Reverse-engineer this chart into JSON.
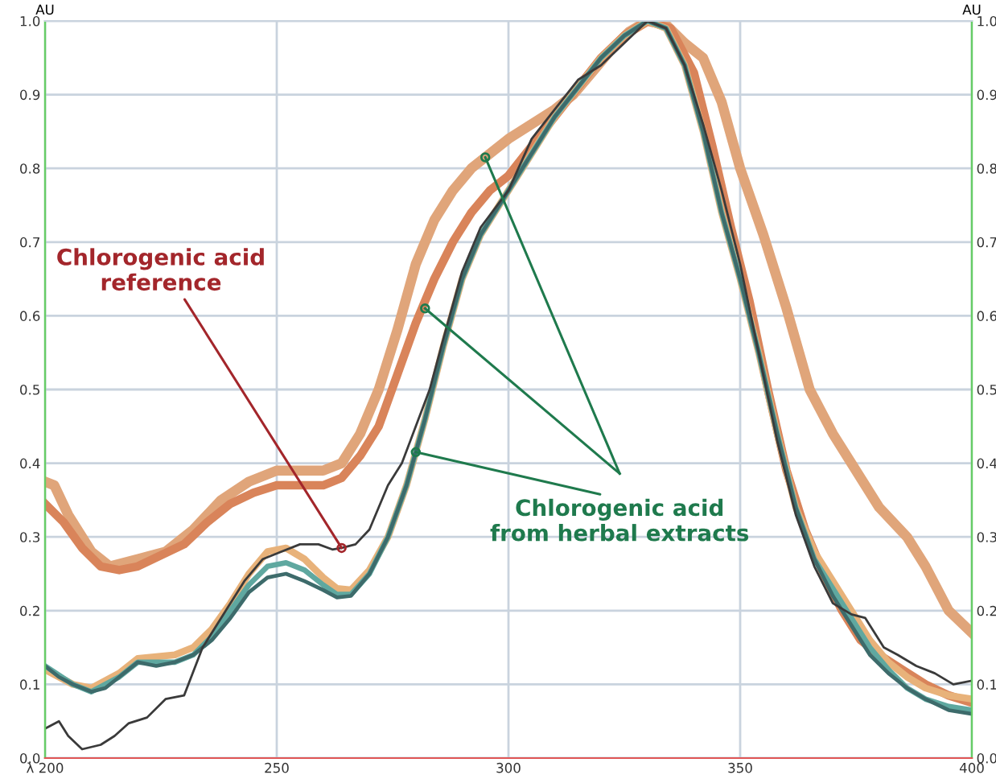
{
  "chart_data": {
    "type": "line",
    "ylabel": "AU",
    "y2label": "AU",
    "xlim": [
      200,
      400
    ],
    "xticks": [
      {
        "value": 200,
        "label": "λ 200"
      },
      250,
      300,
      350,
      400
    ],
    "ylim": [
      0,
      1.0
    ],
    "yticks": [
      {
        "value": 0,
        "label": "0.0"
      },
      0.1,
      0.2,
      0.3,
      0.4,
      0.5,
      0.6,
      0.7,
      0.8,
      0.9,
      {
        "value": 1.0,
        "label": "1.0"
      }
    ],
    "y2lim": [
      0,
      1.0
    ],
    "y2ticks": [
      {
        "value": 0,
        "label": "0.0"
      },
      0.1,
      0.2,
      0.3,
      0.4,
      0.5,
      0.6,
      0.7,
      0.8,
      0.9,
      {
        "value": 1.0,
        "label": "1.0"
      }
    ],
    "grid": true,
    "legend": false,
    "marker": "none",
    "line_style": "solid",
    "annotations": [
      {
        "text": "Chlorogenic acid\nreference",
        "x": 264,
        "y": 0.285
      },
      {
        "text": "Chlorogenic acid\nfrom herbal extracts",
        "x": 280,
        "y": 0.415
      }
    ],
    "series": [
      {
        "color": "#e0a57a",
        "x": [
          200,
          202,
          205,
          210,
          214,
          220,
          226,
          232,
          238,
          244,
          250,
          256,
          260,
          264,
          268,
          272,
          276,
          280,
          284,
          288,
          292,
          296,
          300,
          305,
          310,
          314,
          318,
          322,
          326,
          330,
          334,
          338,
          342,
          346,
          350,
          355,
          360,
          365,
          370,
          374,
          380,
          386,
          390,
          395,
          400
        ],
        "values": [
          0.375,
          0.37,
          0.33,
          0.28,
          0.26,
          0.27,
          0.28,
          0.31,
          0.35,
          0.375,
          0.39,
          0.39,
          0.39,
          0.4,
          0.44,
          0.5,
          0.58,
          0.67,
          0.73,
          0.77,
          0.8,
          0.82,
          0.84,
          0.86,
          0.88,
          0.9,
          0.93,
          0.96,
          0.985,
          1.0,
          0.995,
          0.97,
          0.95,
          0.89,
          0.8,
          0.71,
          0.61,
          0.5,
          0.44,
          0.4,
          0.34,
          0.3,
          0.26,
          0.2,
          0.17
        ]
      },
      {
        "color": "#d9845a",
        "x": [
          200,
          204,
          208,
          212,
          216,
          220,
          225,
          230,
          235,
          240,
          245,
          250,
          255,
          260,
          264,
          268,
          272,
          276,
          280,
          284,
          288,
          292,
          296,
          300,
          305,
          310,
          315,
          320,
          325,
          330,
          335,
          340,
          344,
          348,
          352,
          356,
          360,
          364,
          368,
          372,
          376,
          380,
          385,
          390,
          395,
          400
        ],
        "values": [
          0.345,
          0.32,
          0.285,
          0.26,
          0.255,
          0.26,
          0.275,
          0.29,
          0.32,
          0.345,
          0.36,
          0.37,
          0.37,
          0.37,
          0.38,
          0.41,
          0.45,
          0.52,
          0.59,
          0.65,
          0.7,
          0.74,
          0.77,
          0.79,
          0.83,
          0.87,
          0.91,
          0.95,
          0.98,
          1.0,
          0.99,
          0.93,
          0.83,
          0.72,
          0.62,
          0.5,
          0.39,
          0.31,
          0.25,
          0.2,
          0.16,
          0.14,
          0.12,
          0.1,
          0.085,
          0.075
        ]
      },
      {
        "color": "#e8b27a",
        "x": [
          200,
          206,
          210,
          216,
          220,
          228,
          232,
          236,
          240,
          244,
          248,
          252,
          256,
          260,
          263,
          266,
          270,
          274,
          278,
          282,
          286,
          290,
          294,
          298,
          302,
          306,
          310,
          315,
          320,
          325,
          330,
          334,
          338,
          342,
          346,
          350,
          354,
          358,
          362,
          366,
          370,
          374,
          378,
          382,
          386,
          390,
          395,
          400
        ],
        "values": [
          0.12,
          0.1,
          0.095,
          0.115,
          0.135,
          0.14,
          0.15,
          0.175,
          0.21,
          0.25,
          0.28,
          0.285,
          0.27,
          0.245,
          0.23,
          0.228,
          0.255,
          0.3,
          0.37,
          0.46,
          0.56,
          0.65,
          0.71,
          0.75,
          0.79,
          0.83,
          0.87,
          0.91,
          0.95,
          0.98,
          1.0,
          0.99,
          0.94,
          0.85,
          0.74,
          0.65,
          0.55,
          0.44,
          0.34,
          0.28,
          0.24,
          0.2,
          0.16,
          0.13,
          0.11,
          0.095,
          0.085,
          0.08
        ]
      },
      {
        "color": "#5fa8a0",
        "x": [
          200,
          206,
          210,
          216,
          220,
          228,
          232,
          236,
          240,
          244,
          248,
          252,
          256,
          260,
          263,
          266,
          270,
          274,
          278,
          282,
          286,
          290,
          294,
          298,
          302,
          306,
          310,
          315,
          320,
          325,
          330,
          334,
          338,
          342,
          346,
          350,
          354,
          358,
          362,
          366,
          370,
          374,
          378,
          382,
          386,
          390,
          395,
          400
        ],
        "values": [
          0.125,
          0.1,
          0.09,
          0.11,
          0.13,
          0.13,
          0.14,
          0.165,
          0.2,
          0.235,
          0.26,
          0.265,
          0.255,
          0.235,
          0.222,
          0.222,
          0.25,
          0.3,
          0.37,
          0.46,
          0.56,
          0.65,
          0.71,
          0.75,
          0.79,
          0.83,
          0.87,
          0.91,
          0.95,
          0.98,
          1.0,
          0.99,
          0.94,
          0.85,
          0.74,
          0.65,
          0.55,
          0.44,
          0.34,
          0.27,
          0.23,
          0.19,
          0.15,
          0.12,
          0.095,
          0.08,
          0.07,
          0.065
        ]
      },
      {
        "color": "#3d6b6b",
        "x": [
          200,
          203,
          206,
          210,
          213,
          216,
          220,
          224,
          228,
          232,
          236,
          240,
          244,
          248,
          252,
          256,
          260,
          263,
          266,
          270,
          274,
          278,
          282,
          286,
          290,
          294,
          298,
          302,
          306,
          310,
          315,
          320,
          325,
          330,
          334,
          338,
          342,
          346,
          350,
          354,
          358,
          362,
          366,
          370,
          374,
          378,
          382,
          386,
          390,
          395,
          400
        ],
        "values": [
          0.125,
          0.11,
          0.1,
          0.09,
          0.095,
          0.11,
          0.13,
          0.125,
          0.13,
          0.14,
          0.16,
          0.19,
          0.225,
          0.245,
          0.25,
          0.24,
          0.228,
          0.218,
          0.22,
          0.25,
          0.3,
          0.37,
          0.46,
          0.56,
          0.65,
          0.71,
          0.75,
          0.79,
          0.83,
          0.87,
          0.91,
          0.95,
          0.98,
          1.0,
          0.99,
          0.94,
          0.85,
          0.74,
          0.65,
          0.55,
          0.44,
          0.34,
          0.27,
          0.22,
          0.18,
          0.14,
          0.115,
          0.095,
          0.08,
          0.065,
          0.06
        ]
      },
      {
        "color": "#3a3a3a",
        "x": [
          200,
          203,
          205,
          208,
          212,
          215,
          218,
          222,
          226,
          230,
          234,
          239,
          243,
          247,
          251,
          255,
          259,
          262,
          264,
          267,
          270,
          274,
          277,
          280,
          283,
          286,
          290,
          294,
          300,
          305,
          310,
          315,
          320,
          325,
          330,
          334,
          338,
          342,
          346,
          350,
          354,
          358,
          362,
          366,
          370,
          374,
          377,
          381,
          384,
          388,
          392,
          396,
          400
        ],
        "values": [
          0.04,
          0.05,
          0.03,
          0.012,
          0.018,
          0.03,
          0.047,
          0.055,
          0.08,
          0.085,
          0.15,
          0.2,
          0.24,
          0.27,
          0.28,
          0.29,
          0.29,
          0.283,
          0.285,
          0.29,
          0.31,
          0.37,
          0.4,
          0.45,
          0.5,
          0.57,
          0.66,
          0.72,
          0.77,
          0.84,
          0.88,
          0.92,
          0.94,
          0.97,
          1.0,
          0.99,
          0.94,
          0.86,
          0.77,
          0.67,
          0.55,
          0.43,
          0.33,
          0.26,
          0.21,
          0.195,
          0.19,
          0.15,
          0.14,
          0.125,
          0.115,
          0.1,
          0.105
        ]
      }
    ]
  }
}
